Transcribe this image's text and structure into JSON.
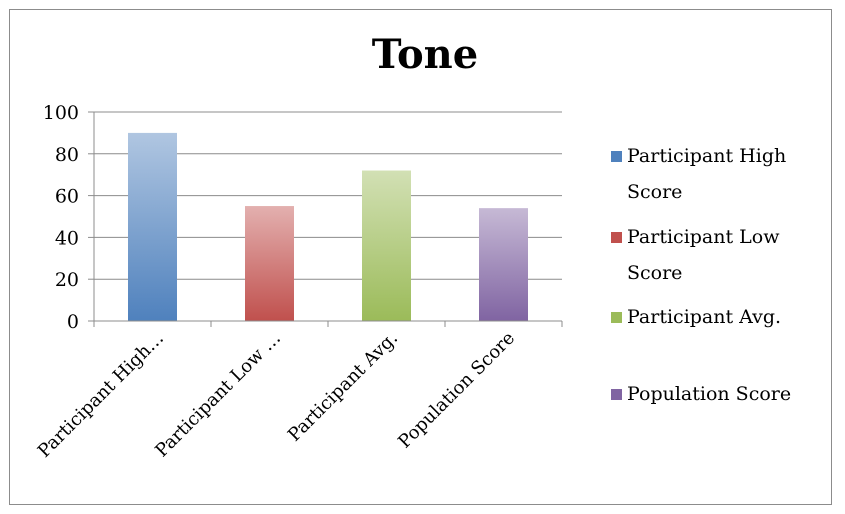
{
  "chart_data": {
    "type": "bar",
    "title": "Tone",
    "xlabel": "",
    "ylabel": "",
    "ylim": [
      0,
      100
    ],
    "yticks": [
      0,
      20,
      40,
      60,
      80,
      100
    ],
    "categories": [
      "Participant High…",
      "Participant Low …",
      "Participant Avg.",
      "Population Score"
    ],
    "values": [
      90,
      55,
      72,
      54
    ],
    "colors": [
      "#4f81bd",
      "#c0504d",
      "#9bbb59",
      "#8064a2"
    ],
    "grid": true,
    "legend_position": "right",
    "legend": [
      {
        "lines": [
          "Participant High",
          "Score"
        ],
        "color": "#4f81bd"
      },
      {
        "lines": [
          "Participant Low",
          "Score"
        ],
        "color": "#c0504d"
      },
      {
        "lines": [
          "Participant Avg."
        ],
        "color": "#9bbb59"
      },
      {
        "lines": [
          "Population Score"
        ],
        "color": "#8064a2"
      }
    ]
  }
}
